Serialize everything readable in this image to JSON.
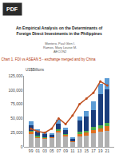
{
  "chart_data": {
    "type": "bar",
    "stacked": true,
    "title": "Chart 1. FDI vs ASEAN 5 - exchange merged and by China",
    "ylabel": "US$Billions",
    "annotations": [
      "PDF",
      "An Empirical Analysis on the Determinants of\nForeign Direct Investments in the Philippines",
      "Montero, Paul Glen I.\nRamos, Mary Louise M.\nAECON2"
    ],
    "categories": [
      "99",
      "01",
      "03",
      "05",
      "07",
      "09",
      "11",
      "13",
      "15",
      "17",
      "19",
      "21"
    ],
    "series": [
      {
        "type": "bar",
        "color": "#b0b0b0",
        "values": [
          22000,
          15000,
          14000,
          15000,
          25000,
          18000,
          8000,
          18000,
          20000,
          24000,
          26000,
          28000
        ]
      },
      {
        "type": "bar",
        "color": "#e07020",
        "values": [
          4000,
          2500,
          1500,
          1500,
          3500,
          2500,
          1500,
          4500,
          5000,
          6000,
          7000,
          9000
        ]
      },
      {
        "type": "bar",
        "color": "#4aaa4a",
        "values": [
          2500,
          1500,
          800,
          800,
          1800,
          1500,
          800,
          3500,
          3500,
          4500,
          4500,
          5500
        ]
      },
      {
        "type": "bar",
        "color": "#1a3d7c",
        "values": [
          10000,
          8000,
          6000,
          4000,
          10000,
          8000,
          4000,
          20000,
          25000,
          30000,
          55000,
          58000
        ]
      },
      {
        "type": "bar",
        "color": "#5b9bd5",
        "values": [
          7000,
          4000,
          3000,
          2000,
          7000,
          4000,
          2000,
          8000,
          10000,
          15000,
          18000,
          20000
        ]
      },
      {
        "type": "line",
        "color": "#c05020",
        "marker": "circle",
        "values": [
          32000,
          27000,
          25000,
          32000,
          50000,
          40000,
          55000,
          75000,
          85000,
          95000,
          115000,
          108000
        ]
      }
    ],
    "ylim": [
      0,
      125000
    ],
    "yticks": [
      0,
      {
        "value": 25000,
        "label": "25,000"
      },
      {
        "value": 50000,
        "label": "50,000"
      },
      {
        "value": 75000,
        "label": "75,000"
      },
      {
        "value": 100000,
        "label": "100,000"
      },
      {
        "value": 125000,
        "label": "125,000"
      }
    ],
    "grid": false
  }
}
